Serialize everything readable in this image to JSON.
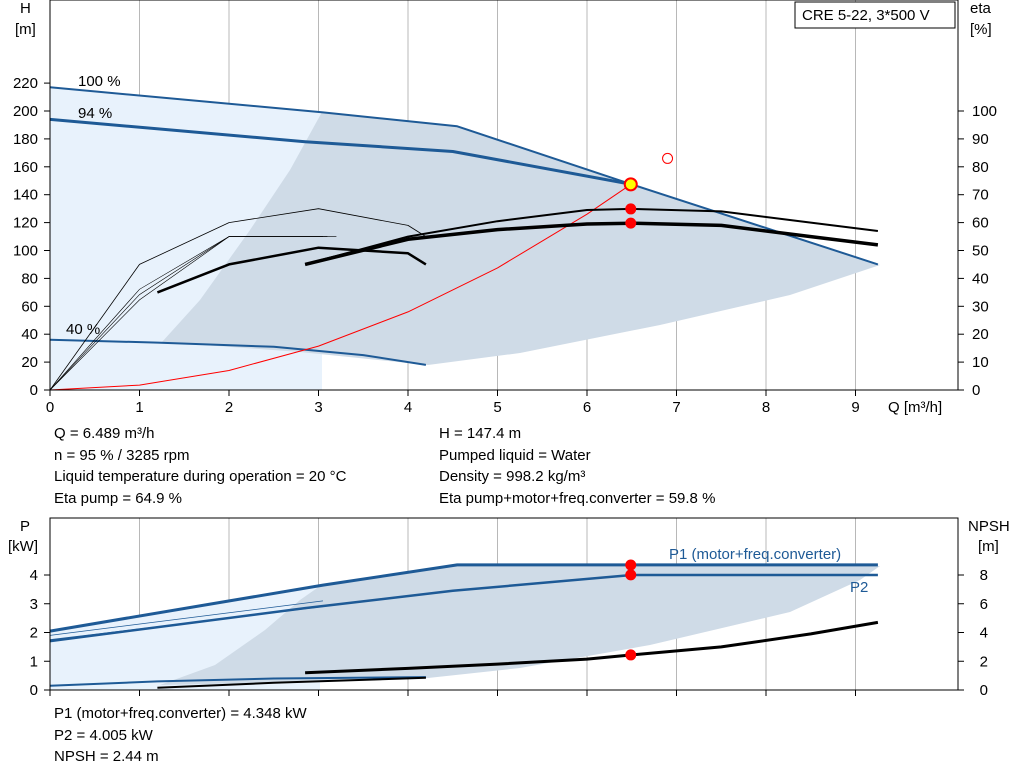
{
  "model_label": "CRE 5-22, 3*500 V",
  "chart_data": [
    {
      "type": "line",
      "title": "",
      "xlabel": "Q [m³/h]",
      "x_unit": "m³/h",
      "ylabel": "H",
      "y_unit": "[m]",
      "y2label": "eta",
      "y2_unit": "[%]",
      "xlim": [
        0,
        10
      ],
      "ylim": [
        0,
        240
      ],
      "y2lim": [
        0,
        120
      ],
      "x_ticks": [
        0,
        1,
        2,
        3,
        4,
        5,
        6,
        7,
        8,
        9
      ],
      "y_ticks": [
        0,
        20,
        40,
        60,
        80,
        100,
        120,
        140,
        160,
        180,
        200,
        220
      ],
      "y2_ticks": [
        0,
        10,
        20,
        30,
        40,
        50,
        60,
        70,
        80,
        90,
        100
      ],
      "grid": true,
      "speed_labels": [
        "100 %",
        "94 %",
        "40 %"
      ],
      "series": [
        {
          "role": "head-max",
          "color": "#1e5a96",
          "x": [
            0,
            3.05,
            4.55,
            6.5,
            9.25
          ],
          "y": [
            217,
            199,
            189,
            147.4,
            90
          ]
        },
        {
          "role": "head-94",
          "color": "#1e5a96",
          "x": [
            0,
            2.85,
            4.5,
            6.5
          ],
          "y": [
            194,
            178,
            171,
            147.4
          ]
        },
        {
          "role": "head-40",
          "color": "#1e5a96",
          "x": [
            0,
            1.2,
            2.5,
            3.5,
            4.2
          ],
          "y": [
            36,
            34,
            31,
            25,
            18
          ]
        },
        {
          "role": "system-curve",
          "color": "#ff0000",
          "x": [
            0,
            1,
            2,
            3,
            4,
            5,
            6,
            6.489
          ],
          "y": [
            0,
            3.5,
            14,
            31.5,
            56,
            87.5,
            126,
            147.4
          ]
        },
        {
          "role": "eta-pump",
          "color": "#000000",
          "x": [
            2.85,
            4,
            5,
            6,
            6.5,
            7.5,
            8.5,
            9.25
          ],
          "y2": [
            45,
            55,
            60.5,
            64.5,
            64.9,
            64,
            60,
            57
          ]
        },
        {
          "role": "eta-total",
          "color": "#000000",
          "x": [
            2.85,
            4,
            5,
            6,
            6.5,
            7.5,
            8.5,
            9.25
          ],
          "y2": [
            45,
            54,
            57.5,
            59.5,
            59.8,
            59,
            55,
            52
          ]
        },
        {
          "role": "eta-pump-reduced",
          "color": "#000000",
          "x": [
            1.2,
            2,
            3,
            4,
            4.2
          ],
          "y2": [
            35,
            45,
            51,
            49,
            45
          ]
        },
        {
          "role": "eta-arc",
          "color": "#000000",
          "x": [
            0,
            1,
            2,
            3,
            4,
            4.2
          ],
          "y2": [
            0,
            45,
            60,
            65,
            59,
            55
          ]
        }
      ],
      "duty_point": {
        "x": 6.489,
        "y": 147.4
      },
      "eta_points": [
        {
          "x": 6.489,
          "y2": 64.9
        },
        {
          "x": 6.489,
          "y2": 59.8
        }
      ],
      "open_marker": {
        "x": 6.9,
        "y": 166
      }
    },
    {
      "type": "line",
      "title": "",
      "ylabel": "P",
      "y_unit": "[kW]",
      "y2label": "NPSH",
      "y2_unit": "[m]",
      "xlim": [
        0,
        10
      ],
      "ylim": [
        0,
        6
      ],
      "y2lim": [
        0,
        12
      ],
      "y_ticks": [
        0,
        1,
        2,
        3,
        4
      ],
      "y2_ticks": [
        0,
        2,
        4,
        6,
        8
      ],
      "grid": true,
      "series": [
        {
          "name": "P1 (motor+freq.converter)",
          "color": "#1e5a96",
          "x": [
            0,
            3.05,
            4.55,
            6.5,
            9.25
          ],
          "y": [
            2.05,
            3.65,
            4.35,
            4.35,
            4.35
          ]
        },
        {
          "name": "P2",
          "color": "#1e5a96",
          "x": [
            0,
            2.85,
            4.5,
            6.5,
            9.25
          ],
          "y": [
            1.7,
            2.85,
            3.45,
            4.0,
            4.0
          ]
        },
        {
          "role": "npsh",
          "color": "#000000",
          "x": [
            2.85,
            4,
            5,
            6,
            6.5,
            7.5,
            8.5,
            9.25
          ],
          "y2": [
            1.2,
            1.5,
            1.8,
            2.15,
            2.44,
            3.0,
            3.9,
            4.7
          ]
        },
        {
          "role": "power-reduced",
          "color": "#1e5a96",
          "x": [
            0,
            1.2,
            2.5,
            4.2
          ],
          "y": [
            0.15,
            0.3,
            0.4,
            0.45
          ]
        },
        {
          "role": "npsh-reduced",
          "color": "#000000",
          "x": [
            1.2,
            2.5,
            4.2
          ],
          "y2": [
            0.15,
            0.5,
            0.85
          ]
        }
      ],
      "points": [
        {
          "x": 6.489,
          "y": 4.348
        },
        {
          "x": 6.489,
          "y": 4.005
        },
        {
          "x": 6.489,
          "y2": 2.44
        }
      ]
    }
  ],
  "info": {
    "q": "Q = 6.489 m³/h",
    "n": "n = 95 % / 3285 rpm",
    "liquid_temp": "Liquid temperature during operation = 20 °C",
    "eta_pump": "Eta pump = 64.9 %",
    "h": "H = 147.4 m",
    "pumped_liquid": "Pumped liquid = Water",
    "density": "Density = 998.2 kg/m³",
    "eta_total": "Eta pump+motor+freq.converter = 59.8 %"
  },
  "info2": {
    "p1": "P1 (motor+freq.converter) = 4.348 kW",
    "p2": "P2 = 4.005 kW",
    "npsh": "NPSH = 2.44 m"
  }
}
